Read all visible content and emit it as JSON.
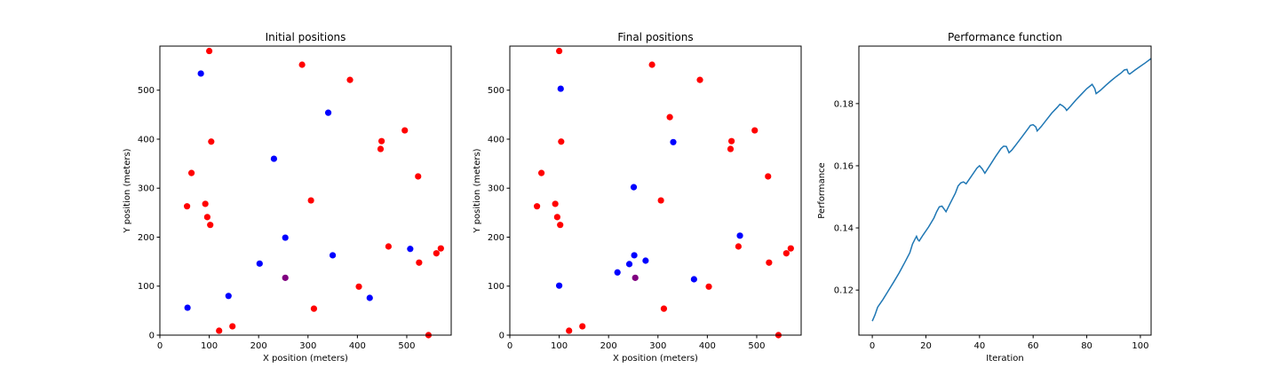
{
  "chart_data": [
    {
      "type": "scatter",
      "title": "Initial positions",
      "xlabel": "X position (meters)",
      "ylabel": "Y position (meters)",
      "xlim": [
        0,
        590
      ],
      "ylim": [
        0,
        590
      ],
      "xticks": [
        0,
        100,
        200,
        300,
        400,
        500
      ],
      "yticks": [
        0,
        100,
        200,
        300,
        400,
        500
      ],
      "grid": false,
      "series": [
        {
          "color": "#ff0000",
          "points": [
            [
              100,
              580
            ],
            [
              288,
              552
            ],
            [
              385,
              521
            ],
            [
              104,
              395
            ],
            [
              449,
              396
            ],
            [
              496,
              418
            ],
            [
              447,
              380
            ],
            [
              64,
              331
            ],
            [
              523,
              324
            ],
            [
              55,
              263
            ],
            [
              92,
              268
            ],
            [
              306,
              275
            ],
            [
              96,
              241
            ],
            [
              102,
              225
            ],
            [
              463,
              181
            ],
            [
              569,
              177
            ],
            [
              560,
              167
            ],
            [
              525,
              148
            ],
            [
              403,
              99
            ],
            [
              312,
              54
            ],
            [
              120,
              9
            ],
            [
              147,
              18
            ],
            [
              544,
              0
            ]
          ]
        },
        {
          "color": "#0000ff",
          "points": [
            [
              83,
              534
            ],
            [
              341,
              454
            ],
            [
              231,
              360
            ],
            [
              254,
              199
            ],
            [
              507,
              176
            ],
            [
              350,
              163
            ],
            [
              202,
              146
            ],
            [
              139,
              80
            ],
            [
              425,
              76
            ],
            [
              56,
              56
            ]
          ]
        },
        {
          "color": "#800080",
          "points": [
            [
              254,
              117
            ]
          ]
        }
      ]
    },
    {
      "type": "scatter",
      "title": "Final positions",
      "xlabel": "X position (meters)",
      "ylabel": "Y position (meters)",
      "xlim": [
        0,
        590
      ],
      "ylim": [
        0,
        590
      ],
      "xticks": [
        0,
        100,
        200,
        300,
        400,
        500
      ],
      "yticks": [
        0,
        100,
        200,
        300,
        400,
        500
      ],
      "grid": false,
      "series": [
        {
          "color": "#ff0000",
          "points": [
            [
              100,
              580
            ],
            [
              288,
              552
            ],
            [
              385,
              521
            ],
            [
              324,
              445
            ],
            [
              104,
              395
            ],
            [
              449,
              396
            ],
            [
              496,
              418
            ],
            [
              447,
              380
            ],
            [
              64,
              331
            ],
            [
              523,
              324
            ],
            [
              55,
              263
            ],
            [
              92,
              268
            ],
            [
              306,
              275
            ],
            [
              96,
              241
            ],
            [
              102,
              225
            ],
            [
              463,
              181
            ],
            [
              569,
              177
            ],
            [
              560,
              167
            ],
            [
              525,
              148
            ],
            [
              403,
              99
            ],
            [
              312,
              54
            ],
            [
              120,
              9
            ],
            [
              147,
              18
            ],
            [
              544,
              0
            ]
          ]
        },
        {
          "color": "#0000ff",
          "points": [
            [
              103,
              503
            ],
            [
              331,
              394
            ],
            [
              251,
              302
            ],
            [
              466,
              203
            ],
            [
              252,
              163
            ],
            [
              275,
              152
            ],
            [
              242,
              145
            ],
            [
              218,
              128
            ],
            [
              373,
              114
            ],
            [
              100,
              101
            ]
          ]
        },
        {
          "color": "#800080",
          "points": [
            [
              254,
              117
            ]
          ]
        }
      ]
    },
    {
      "type": "line",
      "title": "Performance function",
      "xlabel": "Iteration",
      "ylabel": "Performance",
      "xlim": [
        -5,
        104
      ],
      "ylim": [
        0.1055,
        0.1985
      ],
      "xticks": [
        0,
        20,
        40,
        60,
        80,
        100
      ],
      "yticks": [
        0.12,
        0.14,
        0.16,
        0.18
      ],
      "grid": false,
      "series": [
        {
          "color": "#1f77b4",
          "points": [
            [
              0,
              0.11
            ],
            [
              1,
              0.112
            ],
            [
              2,
              0.1145
            ],
            [
              4,
              0.117
            ],
            [
              6,
              0.1198
            ],
            [
              8,
              0.1226
            ],
            [
              10,
              0.1255
            ],
            [
              12,
              0.1287
            ],
            [
              14,
              0.132
            ],
            [
              15,
              0.1348
            ],
            [
              16,
              0.1365
            ],
            [
              16.5,
              0.1373
            ],
            [
              17,
              0.1362
            ],
            [
              17.5,
              0.1358
            ],
            [
              19,
              0.1378
            ],
            [
              21,
              0.1403
            ],
            [
              23,
              0.1432
            ],
            [
              24,
              0.1452
            ],
            [
              25,
              0.1468
            ],
            [
              26,
              0.147
            ],
            [
              27,
              0.1458
            ],
            [
              27.5,
              0.1452
            ],
            [
              29,
              0.1478
            ],
            [
              31,
              0.1512
            ],
            [
              32,
              0.1535
            ],
            [
              33,
              0.1545
            ],
            [
              34,
              0.1548
            ],
            [
              35,
              0.1542
            ],
            [
              37,
              0.1567
            ],
            [
              39,
              0.1592
            ],
            [
              40,
              0.16
            ],
            [
              41,
              0.159
            ],
            [
              42,
              0.1576
            ],
            [
              44,
              0.1603
            ],
            [
              46,
              0.163
            ],
            [
              48,
              0.1655
            ],
            [
              49,
              0.1663
            ],
            [
              50,
              0.1662
            ],
            [
              51,
              0.1642
            ],
            [
              52,
              0.165
            ],
            [
              54,
              0.1672
            ],
            [
              56,
              0.1695
            ],
            [
              58,
              0.1718
            ],
            [
              59,
              0.173
            ],
            [
              60,
              0.1732
            ],
            [
              61,
              0.1725
            ],
            [
              61.5,
              0.1712
            ],
            [
              63,
              0.1726
            ],
            [
              65,
              0.1748
            ],
            [
              67,
              0.177
            ],
            [
              69,
              0.1788
            ],
            [
              70,
              0.1798
            ],
            [
              71,
              0.1793
            ],
            [
              72,
              0.1785
            ],
            [
              72.5,
              0.1778
            ],
            [
              74,
              0.1792
            ],
            [
              76,
              0.1812
            ],
            [
              78,
              0.183
            ],
            [
              80,
              0.1848
            ],
            [
              82,
              0.1862
            ],
            [
              83,
              0.1848
            ],
            [
              83.5,
              0.1832
            ],
            [
              85,
              0.1842
            ],
            [
              87,
              0.1858
            ],
            [
              89,
              0.1873
            ],
            [
              91,
              0.1887
            ],
            [
              93,
              0.19
            ],
            [
              94,
              0.1908
            ],
            [
              95,
              0.191
            ],
            [
              95.5,
              0.1898
            ],
            [
              96,
              0.1895
            ],
            [
              98,
              0.1908
            ],
            [
              100,
              0.192
            ],
            [
              102,
              0.1932
            ],
            [
              104,
              0.1945
            ]
          ]
        }
      ]
    }
  ]
}
